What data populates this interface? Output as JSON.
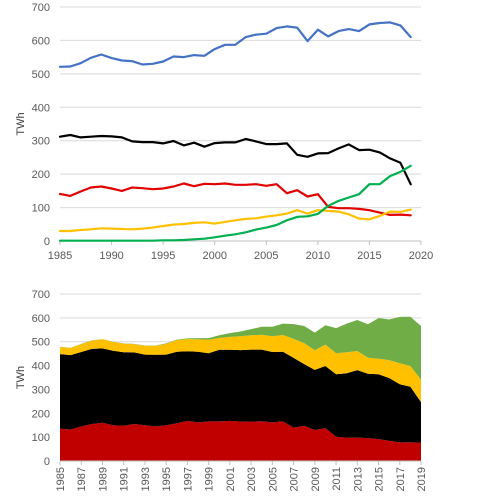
{
  "chart_data": [
    {
      "type": "line",
      "ylabel": "TWh",
      "xlabel": "",
      "xlim": [
        1985,
        2020
      ],
      "ylim": [
        0,
        700
      ],
      "x_ticks": [
        "1985",
        "1990",
        "1995",
        "2000",
        "2005",
        "2010",
        "2015",
        "2020"
      ],
      "y_ticks": [
        "0",
        "100",
        "200",
        "300",
        "400",
        "500",
        "600",
        "700"
      ],
      "grid": true,
      "x": [
        1985,
        1986,
        1987,
        1988,
        1989,
        1990,
        1991,
        1992,
        1993,
        1994,
        1995,
        1996,
        1997,
        1998,
        1999,
        2000,
        2001,
        2002,
        2003,
        2004,
        2005,
        2006,
        2007,
        2008,
        2009,
        2010,
        2011,
        2012,
        2013,
        2014,
        2015,
        2016,
        2017,
        2018,
        2019
      ],
      "series": [
        {
          "color": "#4472c4",
          "values": [
            521,
            522,
            532,
            548,
            558,
            547,
            540,
            538,
            528,
            530,
            537,
            552,
            550,
            556,
            554,
            574,
            587,
            587,
            610,
            617,
            620,
            637,
            642,
            638,
            598,
            632,
            612,
            628,
            634,
            628,
            648,
            652,
            654,
            645,
            610
          ]
        },
        {
          "color": "#000000",
          "values": [
            312,
            317,
            310,
            312,
            314,
            313,
            310,
            298,
            296,
            296,
            292,
            299,
            286,
            294,
            282,
            293,
            295,
            295,
            305,
            298,
            290,
            290,
            292,
            258,
            252,
            262,
            263,
            277,
            289,
            272,
            273,
            265,
            247,
            234,
            170
          ]
        },
        {
          "color": "#e00000",
          "values": [
            141,
            135,
            148,
            160,
            163,
            157,
            150,
            160,
            158,
            155,
            157,
            163,
            172,
            164,
            171,
            170,
            172,
            168,
            168,
            170,
            165,
            170,
            143,
            152,
            133,
            140,
            102,
            98,
            98,
            96,
            92,
            85,
            78,
            79,
            77
          ]
        },
        {
          "color": "#ffc000",
          "values": [
            30,
            30,
            33,
            35,
            38,
            37,
            36,
            35,
            37,
            40,
            45,
            49,
            51,
            54,
            56,
            52,
            57,
            62,
            66,
            68,
            73,
            77,
            82,
            92,
            82,
            92,
            90,
            88,
            80,
            67,
            65,
            75,
            88,
            87,
            94
          ]
        },
        {
          "color": "#00b050",
          "values": [
            1,
            1,
            1,
            1,
            1,
            1,
            1,
            1,
            1,
            1,
            2,
            2,
            3,
            5,
            7,
            11,
            16,
            20,
            26,
            34,
            40,
            48,
            62,
            72,
            74,
            81,
            105,
            120,
            130,
            140,
            170,
            170,
            194,
            207,
            225
          ]
        }
      ]
    },
    {
      "type": "area",
      "ylabel": "TWh",
      "xlabel": "",
      "ylim": [
        0,
        700
      ],
      "y_ticks": [
        "0",
        "100",
        "200",
        "300",
        "400",
        "500",
        "600",
        "700"
      ],
      "grid": true,
      "categories": [
        "1985",
        "1986",
        "1987",
        "1988",
        "1989",
        "1990",
        "1991",
        "1992",
        "1993",
        "1994",
        "1995",
        "1996",
        "1997",
        "1998",
        "1999",
        "2000",
        "2001",
        "2002",
        "2003",
        "2004",
        "2005",
        "2006",
        "2007",
        "2008",
        "2009",
        "2010",
        "2011",
        "2012",
        "2013",
        "2014",
        "2015",
        "2016",
        "2017",
        "2018",
        "2019"
      ],
      "x_tick_labels": [
        "1985",
        "1987",
        "1989",
        "1991",
        "1993",
        "1995",
        "1997",
        "1999",
        "2001",
        "2003",
        "2005",
        "2007",
        "2009",
        "2011",
        "2013",
        "2015",
        "2017",
        "2019"
      ],
      "series": [
        {
          "color": "#c00000",
          "values": [
            135,
            132,
            145,
            155,
            160,
            150,
            148,
            155,
            150,
            145,
            150,
            158,
            168,
            162,
            166,
            166,
            168,
            165,
            165,
            167,
            162,
            166,
            140,
            148,
            130,
            138,
            102,
            98,
            98,
            96,
            92,
            85,
            78,
            79,
            77
          ]
        },
        {
          "color": "#000000",
          "values": [
            313,
            312,
            312,
            315,
            312,
            312,
            308,
            300,
            296,
            300,
            296,
            300,
            292,
            296,
            286,
            300,
            298,
            300,
            302,
            300,
            295,
            292,
            292,
            258,
            252,
            260,
            262,
            270,
            283,
            270,
            272,
            263,
            244,
            232,
            170
          ]
        },
        {
          "color": "#ffc000",
          "values": [
            30,
            30,
            33,
            35,
            38,
            37,
            36,
            35,
            37,
            38,
            45,
            49,
            51,
            52,
            56,
            50,
            54,
            58,
            60,
            62,
            66,
            70,
            80,
            88,
            82,
            90,
            88,
            88,
            80,
            67,
            65,
            75,
            88,
            87,
            94
          ]
        },
        {
          "color": "#70ad47",
          "values": [
            1,
            1,
            1,
            1,
            1,
            1,
            1,
            1,
            1,
            1,
            2,
            2,
            3,
            5,
            7,
            11,
            16,
            20,
            26,
            34,
            40,
            48,
            62,
            72,
            74,
            81,
            105,
            120,
            130,
            140,
            170,
            170,
            194,
            207,
            225
          ]
        }
      ]
    }
  ]
}
